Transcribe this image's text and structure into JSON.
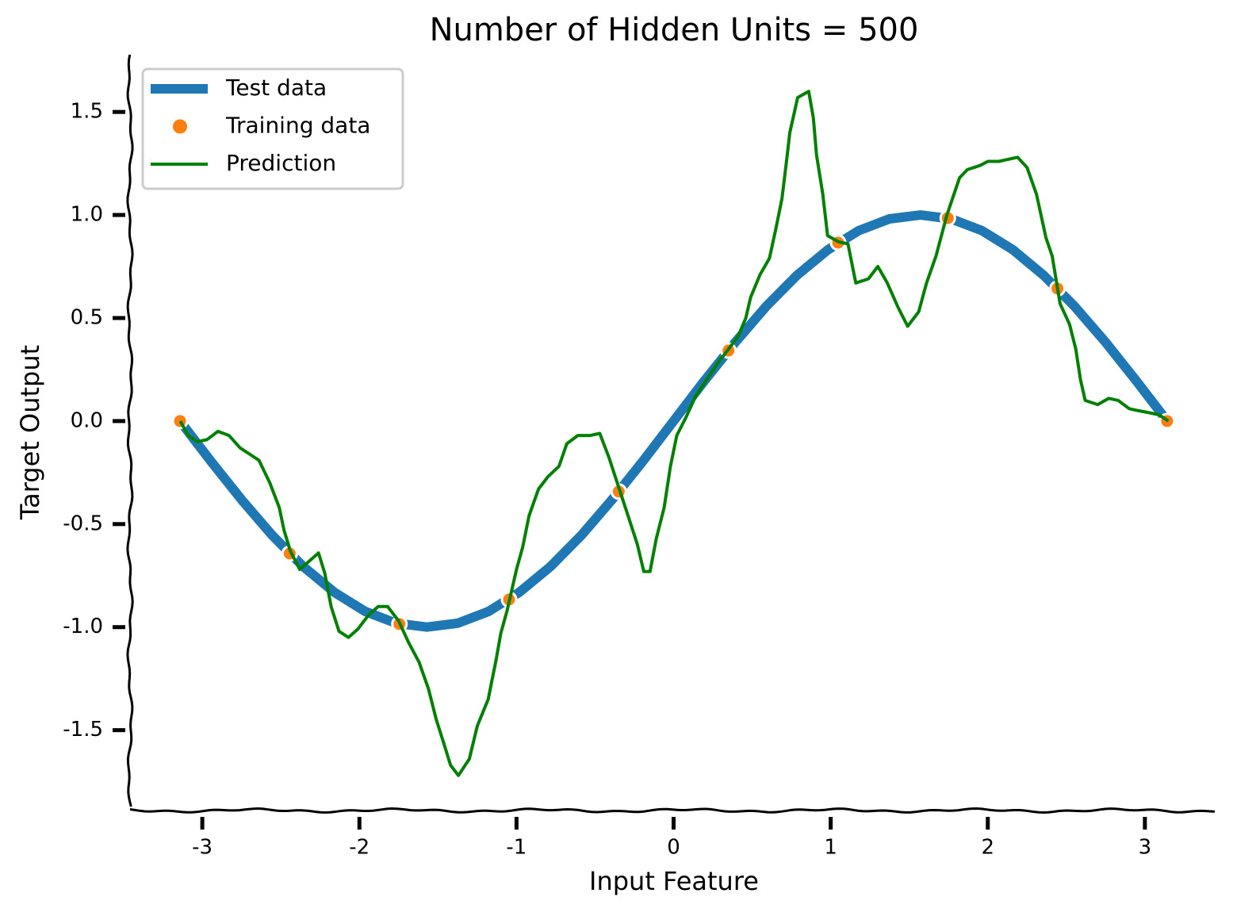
{
  "chart_data": {
    "type": "line",
    "title": "Number of Hidden Units = 500",
    "x_label": "Input Feature",
    "y_label": "Target Output",
    "xlim": [
      -3.46,
      3.47
    ],
    "ylim": [
      -1.89,
      1.77
    ],
    "xticks": [
      -3,
      -2,
      -1,
      0,
      1,
      2,
      3
    ],
    "yticks": [
      1.5,
      {
        "value": 1,
        "label": "1.0"
      },
      0.5,
      {
        "value": 0,
        "label": "0.0"
      },
      -0.5,
      {
        "value": -1,
        "label": "-1.0"
      },
      -1.5
    ],
    "legend": "upper left",
    "series": [
      {
        "name": "Test data",
        "color": "#1f77b4",
        "mode": "line",
        "width": 12,
        "x": [
          -3.142,
          -2.945,
          -2.749,
          -2.553,
          -2.356,
          -2.16,
          -1.963,
          -1.767,
          -1.571,
          -1.374,
          -1.178,
          -0.982,
          -0.785,
          -0.589,
          -0.393,
          -0.196,
          0,
          0.196,
          0.393,
          0.589,
          0.785,
          0.982,
          1.178,
          1.374,
          1.571,
          1.767,
          1.963,
          2.16,
          2.356,
          2.553,
          2.749,
          2.945,
          3.142
        ],
        "values": [
          0,
          -0.195,
          -0.383,
          -0.556,
          -0.707,
          -0.831,
          -0.924,
          -0.981,
          -1,
          -0.981,
          -0.924,
          -0.831,
          -0.707,
          -0.556,
          -0.383,
          -0.195,
          0,
          0.195,
          0.383,
          0.556,
          0.707,
          0.831,
          0.924,
          0.981,
          1,
          0.981,
          0.924,
          0.831,
          0.707,
          0.556,
          0.383,
          0.195,
          0
        ]
      },
      {
        "name": "Training data",
        "color": "#ff7f0e",
        "mode": "markers",
        "x": [
          -3.1416,
          -2.4435,
          -1.7453,
          -1.0472,
          -0.3491,
          0.3491,
          1.0472,
          1.7453,
          2.4435,
          3.1416
        ],
        "values": [
          0,
          -0.643,
          -0.985,
          -0.866,
          -0.342,
          0.342,
          0.866,
          0.985,
          0.643,
          0
        ]
      },
      {
        "name": "Prediction",
        "color": "#008000",
        "mode": "line",
        "width": 4,
        "x": [
          -3.14,
          -3.09,
          -3.03,
          -2.97,
          -2.9,
          -2.83,
          -2.76,
          -2.7,
          -2.64,
          -2.57,
          -2.51,
          -2.48,
          -2.44,
          -2.38,
          -2.32,
          -2.26,
          -2.22,
          -2.18,
          -2.13,
          -2.07,
          -2.01,
          -1.94,
          -1.88,
          -1.82,
          -1.75,
          -1.69,
          -1.62,
          -1.56,
          -1.51,
          -1.46,
          -1.42,
          -1.37,
          -1.3,
          -1.25,
          -1.18,
          -1.13,
          -1.1,
          -1.06,
          -1.0,
          -0.96,
          -0.92,
          -0.86,
          -0.8,
          -0.73,
          -0.68,
          -0.61,
          -0.53,
          -0.47,
          -0.41,
          -0.35,
          -0.29,
          -0.23,
          -0.19,
          -0.15,
          -0.11,
          -0.06,
          -0.02,
          0.02,
          0.08,
          0.14,
          0.21,
          0.28,
          0.35,
          0.41,
          0.46,
          0.49,
          0.55,
          0.61,
          0.65,
          0.69,
          0.72,
          0.74,
          0.79,
          0.86,
          0.89,
          0.91,
          0.95,
          0.98,
          1.05,
          1.11,
          1.16,
          1.24,
          1.3,
          1.36,
          1.43,
          1.49,
          1.56,
          1.61,
          1.67,
          1.74,
          1.82,
          1.87,
          1.95,
          2.0,
          2.07,
          2.19,
          2.25,
          2.31,
          2.37,
          2.41,
          2.46,
          2.52,
          2.56,
          2.59,
          2.62,
          2.7,
          2.77,
          2.83,
          2.9,
          2.96,
          3.03,
          3.09,
          3.15
        ],
        "values": [
          0,
          -0.07,
          -0.1,
          -0.09,
          -0.05,
          -0.07,
          -0.13,
          -0.16,
          -0.19,
          -0.3,
          -0.42,
          -0.53,
          -0.63,
          -0.72,
          -0.68,
          -0.64,
          -0.74,
          -0.9,
          -1.02,
          -1.05,
          -1.01,
          -0.94,
          -0.9,
          -0.9,
          -0.97,
          -1.07,
          -1.17,
          -1.3,
          -1.45,
          -1.57,
          -1.67,
          -1.72,
          -1.64,
          -1.48,
          -1.35,
          -1.16,
          -1.03,
          -0.92,
          -0.72,
          -0.61,
          -0.46,
          -0.33,
          -0.27,
          -0.22,
          -0.11,
          -0.07,
          -0.07,
          -0.06,
          -0.18,
          -0.32,
          -0.46,
          -0.6,
          -0.73,
          -0.73,
          -0.57,
          -0.42,
          -0.22,
          -0.07,
          0.02,
          0.12,
          0.2,
          0.28,
          0.35,
          0.41,
          0.5,
          0.6,
          0.71,
          0.79,
          0.93,
          1.08,
          1.27,
          1.4,
          1.57,
          1.6,
          1.47,
          1.29,
          1.1,
          0.9,
          0.87,
          0.86,
          0.67,
          0.69,
          0.75,
          0.67,
          0.55,
          0.46,
          0.53,
          0.67,
          0.8,
          1.0,
          1.18,
          1.22,
          1.24,
          1.26,
          1.26,
          1.28,
          1.23,
          1.1,
          0.89,
          0.8,
          0.57,
          0.47,
          0.35,
          0.2,
          0.1,
          0.08,
          0.11,
          0.1,
          0.06,
          0.05,
          0.04,
          0.03,
          0
        ]
      }
    ]
  }
}
